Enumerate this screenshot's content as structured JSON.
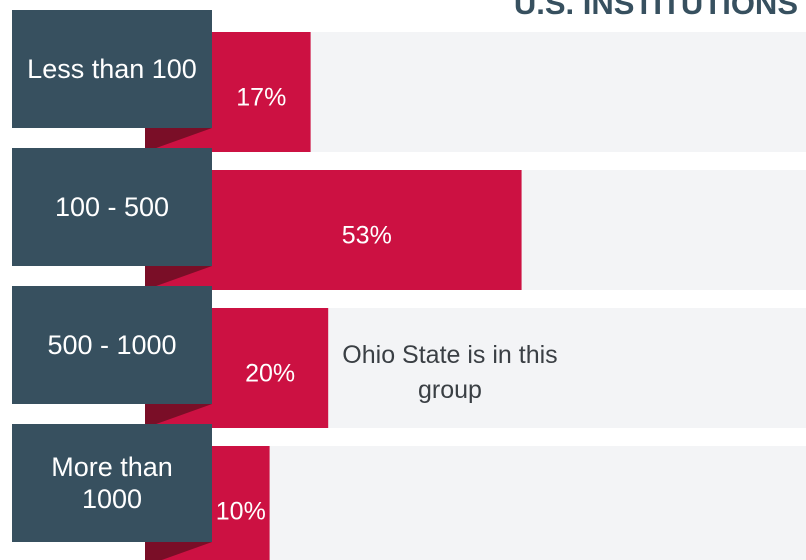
{
  "chart_data": {
    "type": "bar",
    "orientation": "horizontal",
    "title": "U.S. INSTITUTIONS",
    "categories": [
      "Less than 100",
      "100 - 500",
      "500 - 1000",
      "More than 1000"
    ],
    "values": [
      17,
      53,
      20,
      10
    ],
    "value_labels": [
      "17%",
      "53%",
      "20%",
      "10%"
    ],
    "color": "#cc1142",
    "xlim": [
      0,
      100
    ],
    "annotation": {
      "text": "Ohio State is in this group",
      "category_index": 2
    }
  }
}
